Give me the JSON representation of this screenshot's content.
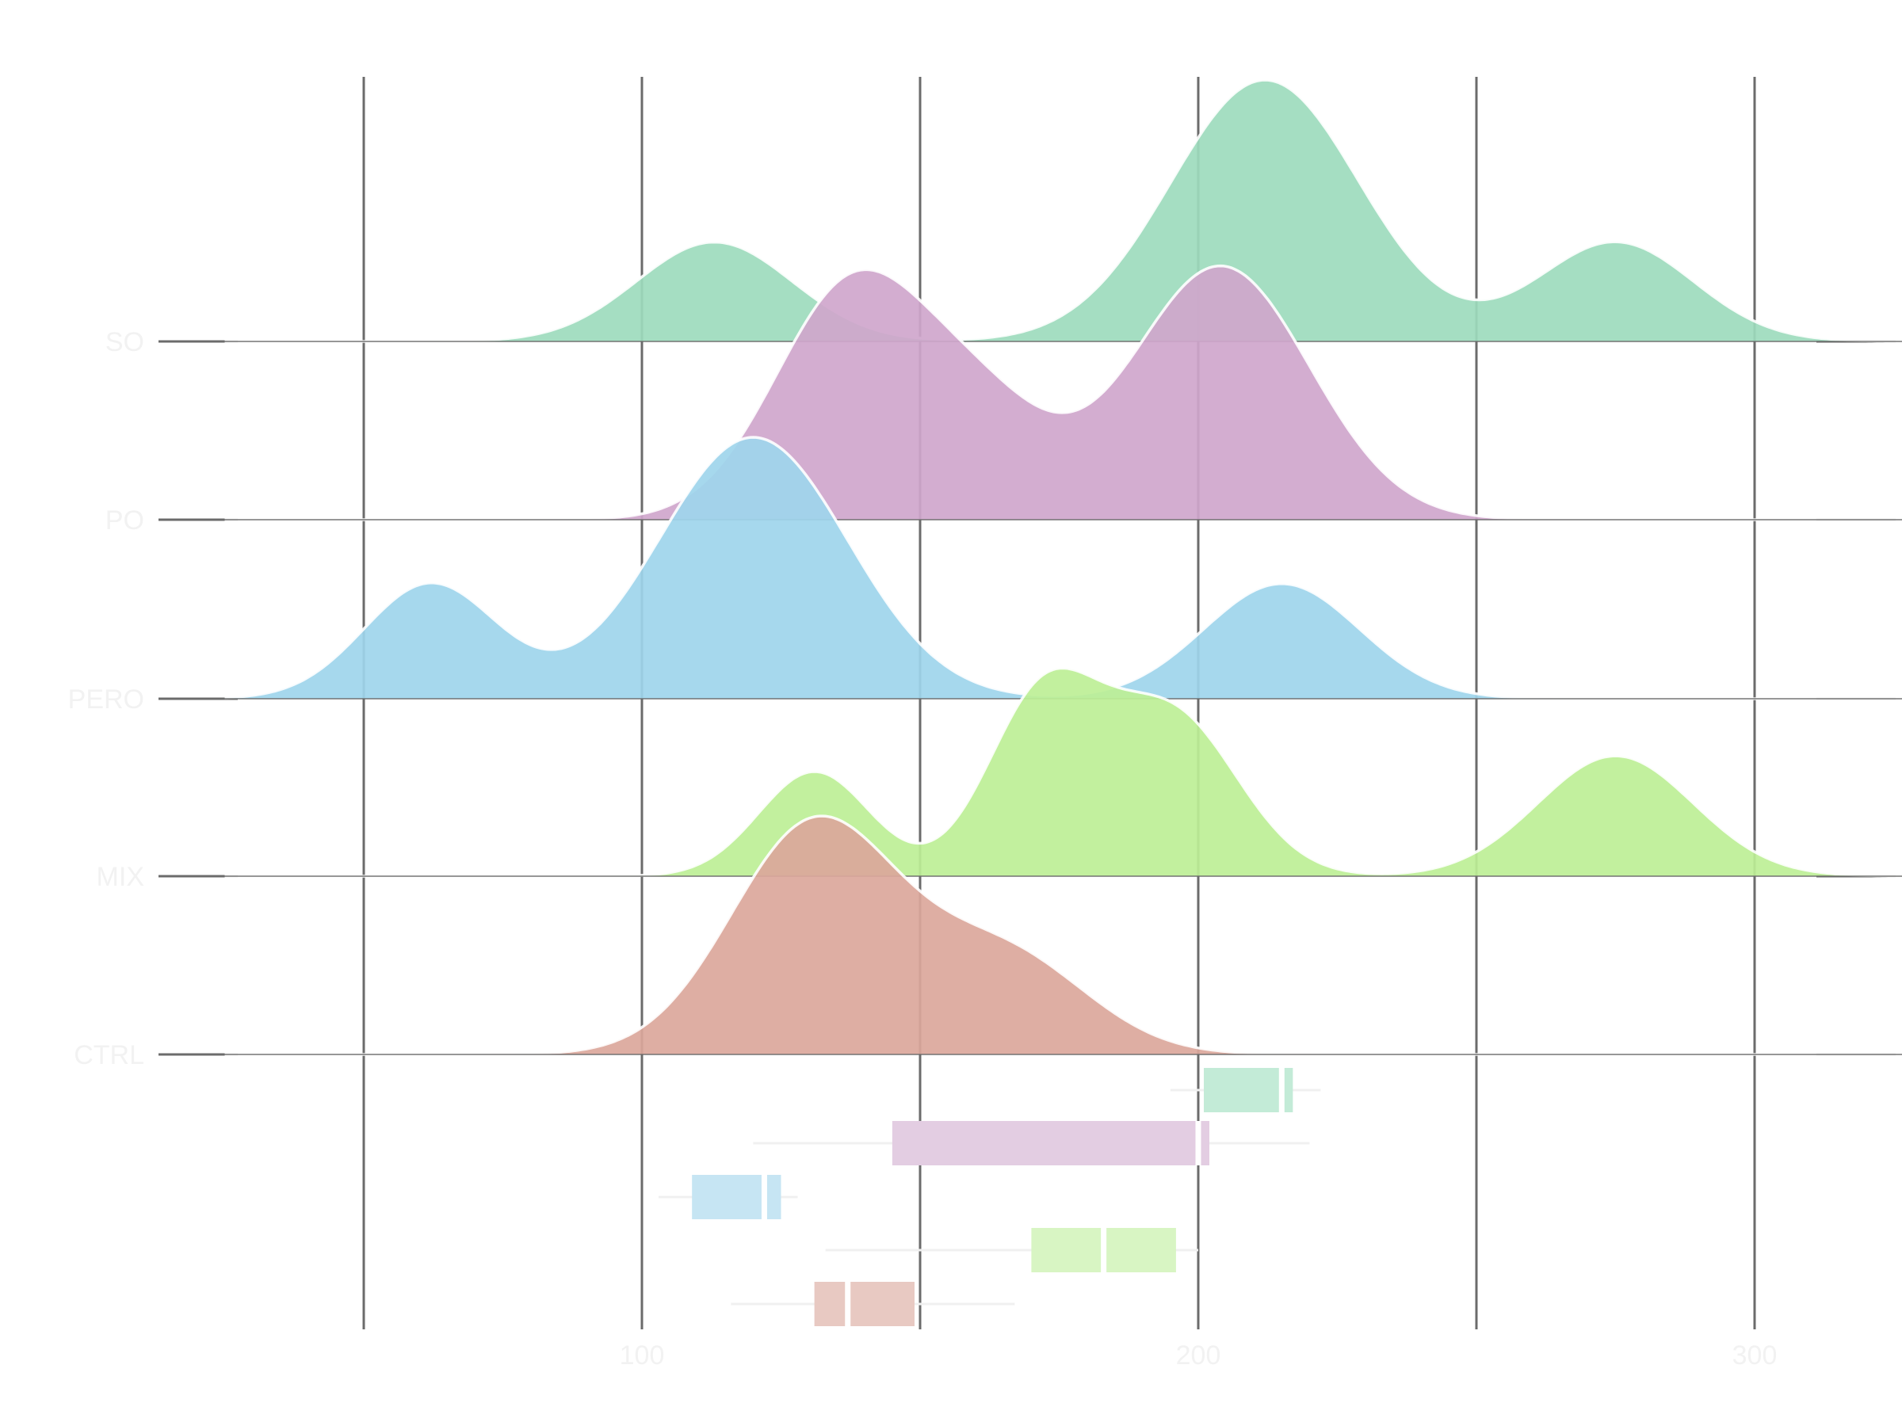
{
  "chart_data": {
    "type": "area",
    "subtype": "ridgeline-density-with-boxplots",
    "title": "",
    "xlabel": "",
    "ylabel": "",
    "xlim": [
      25,
      335
    ],
    "x_ticks": [
      100,
      200,
      300
    ],
    "gridlines_x": [
      50,
      100,
      150,
      200,
      250,
      300
    ],
    "grid": true,
    "legend": "none",
    "density_components": {
      "SO": [
        {
          "mean": 113,
          "sd": 14,
          "peak": 0.38
        },
        {
          "mean": 212,
          "sd": 17,
          "peak": 1.0
        },
        {
          "mean": 275,
          "sd": 14,
          "peak": 0.38
        }
      ],
      "PO": [
        {
          "mean": 138,
          "sd": 14,
          "peak": 0.9
        },
        {
          "mean": 162,
          "sd": 12,
          "peak": 0.35
        },
        {
          "mean": 204,
          "sd": 16,
          "peak": 0.97
        }
      ],
      "PERO": [
        {
          "mean": 62,
          "sd": 12,
          "peak": 0.44
        },
        {
          "mean": 120,
          "sd": 17,
          "peak": 1.0
        },
        {
          "mean": 215,
          "sd": 14,
          "peak": 0.44
        }
      ],
      "MIX": [
        {
          "mean": 131,
          "sd": 10,
          "peak": 0.4
        },
        {
          "mean": 172,
          "sd": 10,
          "peak": 0.67
        },
        {
          "mean": 195,
          "sd": 12,
          "peak": 0.62
        },
        {
          "mean": 275,
          "sd": 14,
          "peak": 0.46
        }
      ],
      "CTRL": [
        {
          "mean": 131,
          "sd": 15,
          "peak": 0.88
        },
        {
          "mean": 165,
          "sd": 15,
          "peak": 0.38
        }
      ]
    },
    "series": [
      {
        "name": "SO",
        "color": "#9ddbbd"
      },
      {
        "name": "PO",
        "color": "#cfa6cc"
      },
      {
        "name": "PERO",
        "color": "#9ed5ec"
      },
      {
        "name": "MIX",
        "color": "#bdef96"
      },
      {
        "name": "CTRL",
        "color": "#dba79b"
      }
    ],
    "boxplots": [
      {
        "group": "SO",
        "whisker_low": 195,
        "q1": 201,
        "median": 215,
        "q3": 217,
        "whisker_high": 222,
        "color": "#c3ebd7"
      },
      {
        "group": "PO",
        "whisker_low": 120,
        "q1": 145,
        "median": 200,
        "q3": 202,
        "whisker_high": 220,
        "color": "#e3cde2"
      },
      {
        "group": "PERO",
        "whisker_low": 103,
        "q1": 109,
        "median": 122,
        "q3": 125,
        "whisker_high": 128,
        "color": "#c6e5f3"
      },
      {
        "group": "MIX",
        "whisker_low": 133,
        "q1": 170,
        "median": 183,
        "q3": 196,
        "whisker_high": 200,
        "color": "#d8f5c3"
      },
      {
        "group": "CTRL",
        "whisker_low": 116,
        "q1": 131,
        "median": 137,
        "q3": 149,
        "whisker_high": 167,
        "color": "#e8c9c2"
      }
    ]
  }
}
